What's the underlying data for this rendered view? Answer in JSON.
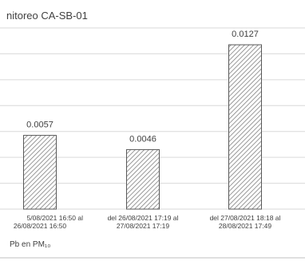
{
  "chart_data": {
    "type": "bar",
    "title": "nitoreo CA-SB-01",
    "category_lines": [
      [
        "5/08/2021 16:50 al",
        "26/08/2021 16:50"
      ],
      [
        "del 26/08/2021 17:19 al",
        "27/08/2021 17:19"
      ],
      [
        "del 27/08/2021 18:18 al",
        "28/08/2021 17:49"
      ]
    ],
    "series": [
      {
        "name": "Pb en PM₁₀",
        "color": "#595959",
        "values": [
          0.0057,
          0.0046,
          0.0127
        ]
      }
    ],
    "ylim": [
      0,
      0.014
    ],
    "yticks": [
      0,
      0.002,
      0.004,
      0.006,
      0.008,
      0.01,
      0.012,
      0.014
    ],
    "grid": true
  }
}
